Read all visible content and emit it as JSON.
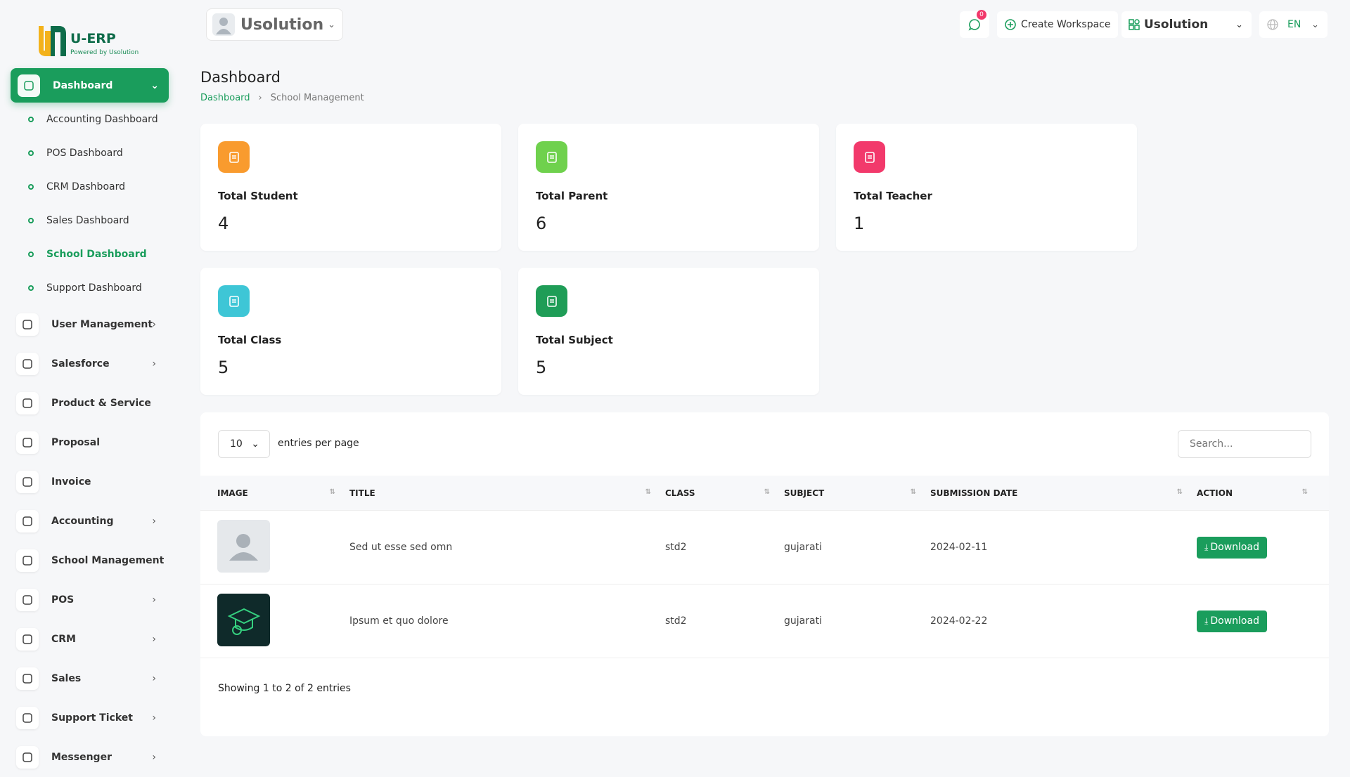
{
  "logo": {
    "title": "U-ERP",
    "subtitle": "Powered by Usolution"
  },
  "topbar": {
    "workspace": "Usolution",
    "notification_count": 0,
    "create_workspace": "Create Workspace",
    "company": "Usolution",
    "language": "EN"
  },
  "sidebar": {
    "items": [
      {
        "label": "Dashboard",
        "children": [
          "Accounting Dashboard",
          "POS Dashboard",
          "CRM Dashboard",
          "Sales Dashboard",
          "School Dashboard",
          "Support Dashboard"
        ]
      },
      {
        "label": "User Management"
      },
      {
        "label": "Salesforce"
      },
      {
        "label": "Product & Service"
      },
      {
        "label": "Proposal"
      },
      {
        "label": "Invoice"
      },
      {
        "label": "Accounting"
      },
      {
        "label": "School Management"
      },
      {
        "label": "POS"
      },
      {
        "label": "CRM"
      },
      {
        "label": "Sales"
      },
      {
        "label": "Support Ticket"
      },
      {
        "label": "Messenger"
      }
    ]
  },
  "page": {
    "title": "Dashboard",
    "breadcrumb": [
      "Dashboard",
      "School Management"
    ]
  },
  "stats": [
    {
      "label": "Total Student",
      "value": 4,
      "color": "#f99b2e"
    },
    {
      "label": "Total Parent",
      "value": 6,
      "color": "#6fd14d"
    },
    {
      "label": "Total Teacher",
      "value": 1,
      "color": "#f2396b"
    },
    {
      "label": "Total Class",
      "value": 5,
      "color": "#3ec6d6"
    },
    {
      "label": "Total Subject",
      "value": 5,
      "color": "#1f9d57"
    }
  ],
  "table": {
    "page_size": 10,
    "entries_label": "entries per page",
    "search_placeholder": "Search...",
    "columns": [
      "IMAGE",
      "TITLE",
      "CLASS",
      "SUBJECT",
      "SUBMISSION DATE",
      "ACTION"
    ],
    "rows": [
      {
        "title": "Sed ut esse sed omn",
        "class": "std2",
        "subject": "gujarati",
        "date": "2024-02-11",
        "action": "Download"
      },
      {
        "title": "Ipsum et quo dolore",
        "class": "std2",
        "subject": "gujarati",
        "date": "2024-02-22",
        "action": "Download"
      }
    ],
    "footer": "Showing 1 to 2 of 2 entries"
  }
}
